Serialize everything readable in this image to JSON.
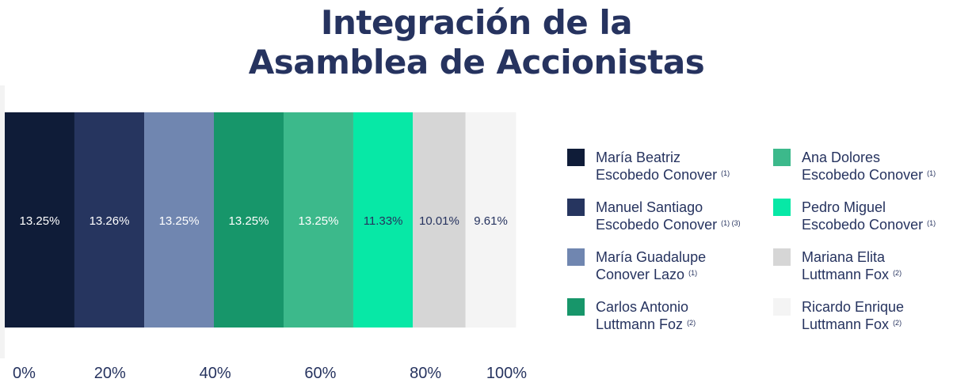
{
  "title": {
    "line1": "Integración de la",
    "line2": "Asamblea de Accionistas"
  },
  "chart_data": {
    "type": "bar",
    "orientation": "horizontal-stacked",
    "xlim": [
      0,
      100
    ],
    "x_tick_labels": [
      "0%",
      "20%",
      "40%",
      "60%",
      "80%",
      "100%"
    ],
    "grid": false,
    "legend_position": "right",
    "series": [
      {
        "name": "María Beatriz Escobedo Conover",
        "note": "(1)",
        "value": 13.25,
        "label": "13.25%",
        "color": "#0f1c38",
        "label_color": "#ffffff"
      },
      {
        "name": "Manuel Santiago Escobedo Conover",
        "note": "(1) (3)",
        "value": 13.26,
        "label": "13.26%",
        "color": "#26355f",
        "label_color": "#ffffff"
      },
      {
        "name": "María Guadalupe Conover Lazo",
        "note": "(1)",
        "value": 13.25,
        "label": "13.25%",
        "color": "#7086b0",
        "label_color": "#ffffff"
      },
      {
        "name": "Carlos Antonio Luttmann Foz",
        "note": "(2)",
        "value": 13.25,
        "label": "13.25%",
        "color": "#17966a",
        "label_color": "#ffffff"
      },
      {
        "name": "Ana Dolores Escobedo Conover",
        "note": "(1)",
        "value": 13.25,
        "label": "13.25%",
        "color": "#3cb98b",
        "label_color": "#ffffff"
      },
      {
        "name": "Pedro Miguel Escobedo Conover",
        "note": "(1)",
        "value": 11.33,
        "label": "11.33%",
        "color": "#07e8a6",
        "label_color": "#26335f"
      },
      {
        "name": "Mariana Elita Luttmann Fox",
        "note": "(2)",
        "value": 10.01,
        "label": "10.01%",
        "color": "#d6d6d6",
        "label_color": "#26335f"
      },
      {
        "name": "Ricardo Enrique Luttmann Fox",
        "note": "(2)",
        "value": 9.61,
        "label": "9.61%",
        "color": "#f4f4f4",
        "label_color": "#26335f"
      }
    ]
  },
  "legend": [
    {
      "line1": "María Beatriz",
      "line2": "Escobedo Conover",
      "sup": "(1)"
    },
    {
      "line1": "Manuel Santiago",
      "line2": "Escobedo Conover",
      "sup": "(1) (3)"
    },
    {
      "line1": "María Guadalupe",
      "line2": "Conover Lazo",
      "sup": "(1)"
    },
    {
      "line1": "Carlos Antonio",
      "line2": "Luttmann Foz",
      "sup": "(2)"
    },
    {
      "line1": "Ana Dolores",
      "line2": "Escobedo Conover",
      "sup": "(1)"
    },
    {
      "line1": "Pedro Miguel",
      "line2": "Escobedo Conover",
      "sup": "(1)"
    },
    {
      "line1": "Mariana Elita",
      "line2": "Luttmann Fox",
      "sup": "(2)"
    },
    {
      "line1": "Ricardo Enrique",
      "line2": "Luttmann Fox",
      "sup": "(2)"
    }
  ]
}
